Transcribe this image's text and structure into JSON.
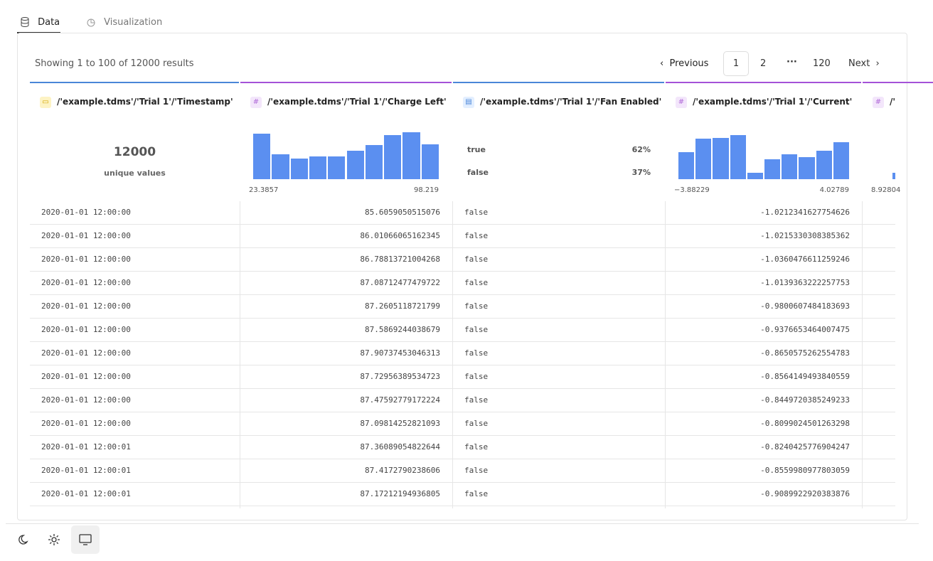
{
  "tabs": [
    "Data",
    "Visualization"
  ],
  "summary": "Showing 1 to 100 of 12000 results",
  "pagination": {
    "previous": "Previous",
    "pages": [
      "1",
      "2",
      "120"
    ],
    "ellipsis": "···",
    "next": "Next"
  },
  "columns": [
    {
      "header": "/'example.tdms'/'Trial 1'/'Timestamp'",
      "unique_count": "12000",
      "unique_label": "unique values"
    },
    {
      "header": "/'example.tdms'/'Trial 1'/'Charge Left'",
      "histogram": [
        64,
        35,
        29,
        32,
        32,
        40,
        48,
        62,
        66,
        49
      ],
      "min_label": "23.3857",
      "max_label": "98.219"
    },
    {
      "header": "/'example.tdms'/'Trial 1'/'Fan Enabled'",
      "bool_stats": [
        {
          "label": "true",
          "percent": "62%"
        },
        {
          "label": "false",
          "percent": "37%"
        }
      ]
    },
    {
      "header": "/'example.tdms'/'Trial 1'/'Current'",
      "histogram": [
        38,
        57,
        58,
        62,
        9,
        28,
        35,
        31,
        40,
        52
      ],
      "min_label": "−3.88229",
      "max_label": "4.02789"
    },
    {
      "header": "/'",
      "min_label": "8.92804"
    }
  ],
  "rows": [
    [
      "2020-01-01 12:00:00",
      "85.6059050515076",
      "false",
      "-1.0212341627754626"
    ],
    [
      "2020-01-01 12:00:00",
      "86.01066065162345",
      "false",
      "-1.0215330308385362"
    ],
    [
      "2020-01-01 12:00:00",
      "86.78813721004268",
      "false",
      "-1.0360476611259246"
    ],
    [
      "2020-01-01 12:00:00",
      "87.08712477479722",
      "false",
      "-1.0139363222257753"
    ],
    [
      "2020-01-01 12:00:00",
      "87.2605118721799",
      "false",
      "-0.9800607484183693"
    ],
    [
      "2020-01-01 12:00:00",
      "87.5869244038679",
      "false",
      "-0.9376653464007475"
    ],
    [
      "2020-01-01 12:00:00",
      "87.90737453046313",
      "false",
      "-0.8650575262554783"
    ],
    [
      "2020-01-01 12:00:00",
      "87.72956389534723",
      "false",
      "-0.8564149493840559"
    ],
    [
      "2020-01-01 12:00:00",
      "87.47592779172224",
      "false",
      "-0.8449720385249233"
    ],
    [
      "2020-01-01 12:00:00",
      "87.09814252821093",
      "false",
      "-0.8099024501263298"
    ],
    [
      "2020-01-01 12:00:01",
      "87.36089054822644",
      "false",
      "-0.8240425776904247"
    ],
    [
      "2020-01-01 12:00:01",
      "87.4172790238606",
      "false",
      "-0.8559980977803059"
    ],
    [
      "2020-01-01 12:00:01",
      "87.17212194936805",
      "false",
      "-0.9089922920383876"
    ]
  ]
}
